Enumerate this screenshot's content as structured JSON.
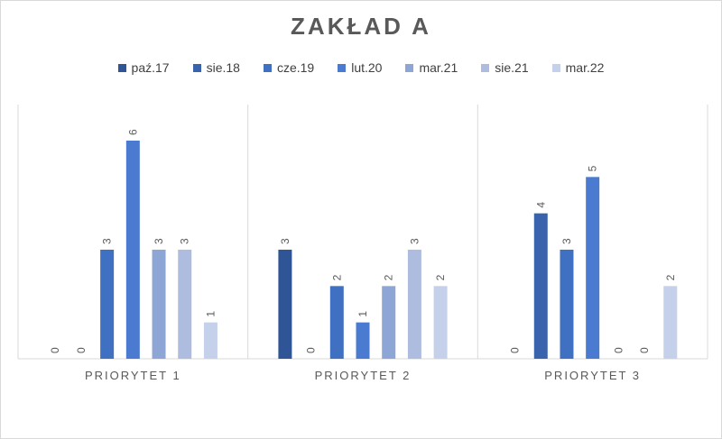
{
  "chart_data": {
    "type": "bar",
    "title": "ZAKŁAD A",
    "categories": [
      "PRIORYTET 1",
      "PRIORYTET 2",
      "PRIORYTET 3"
    ],
    "series": [
      {
        "name": "paź.17",
        "color": "#2f5597",
        "values": [
          0,
          3,
          0
        ]
      },
      {
        "name": "sie.18",
        "color": "#3a63ad",
        "values": [
          0,
          0,
          4
        ]
      },
      {
        "name": "cze.19",
        "color": "#4070c1",
        "values": [
          3,
          2,
          3
        ]
      },
      {
        "name": "lut.20",
        "color": "#4a7bd0",
        "values": [
          6,
          1,
          5
        ]
      },
      {
        "name": "mar.21",
        "color": "#8ea6d6",
        "values": [
          3,
          2,
          0
        ]
      },
      {
        "name": "sie.21",
        "color": "#aebcdf",
        "values": [
          3,
          3,
          0
        ]
      },
      {
        "name": "mar.22",
        "color": "#c5d1ea",
        "values": [
          1,
          2,
          2
        ]
      }
    ],
    "ylim": [
      0,
      6
    ],
    "legend_position": "top",
    "grid": false,
    "data_labels": true
  }
}
